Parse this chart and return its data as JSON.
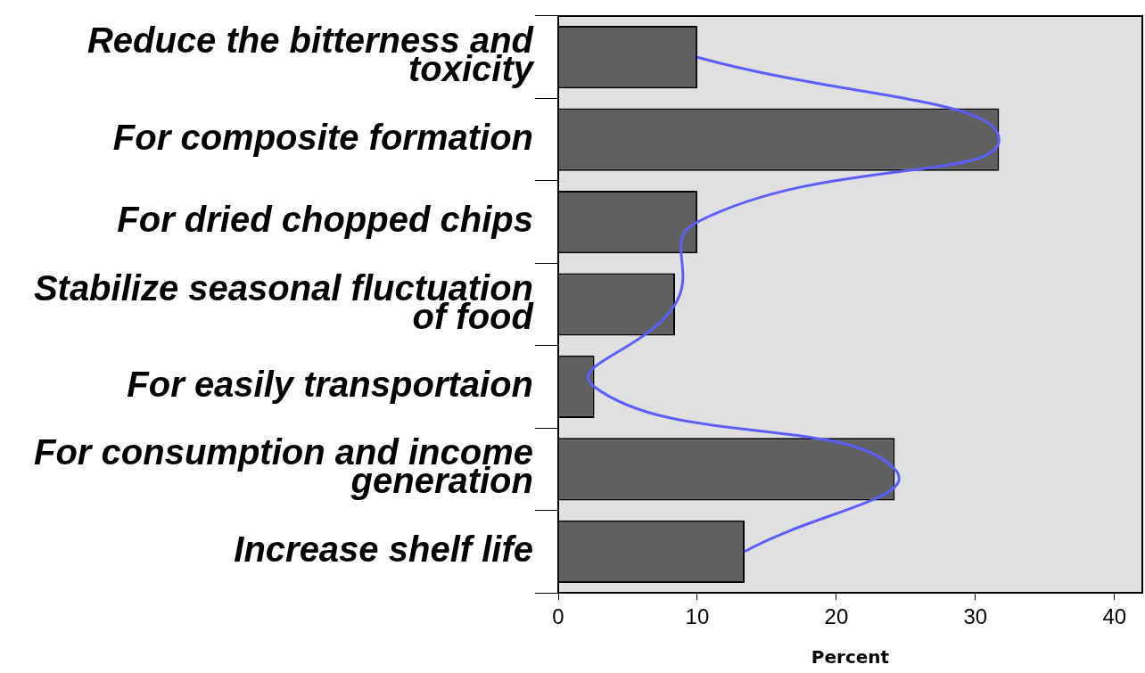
{
  "chart_data": {
    "type": "bar",
    "orientation": "horizontal",
    "xlabel": "Percent",
    "categories": [
      "Reduce the bitterness and toxicity",
      "For composite formation",
      "For dried chopped chips",
      "Stabilize seasonal fluctuation of food",
      "For easily transportaion",
      "For consumption and income generation",
      "Increase shelf life"
    ],
    "series": [
      {
        "color": "#606060",
        "values": [
          10.0,
          31.7,
          10.0,
          8.4,
          2.6,
          24.2,
          13.4
        ]
      },
      {
        "type": "line",
        "color": "#5c5cff",
        "values": [
          10.0,
          31.7,
          10.0,
          8.4,
          2.6,
          24.2,
          13.4
        ]
      }
    ],
    "xlim": [
      0,
      42
    ],
    "xticks": [
      0,
      10,
      20,
      30,
      40
    ],
    "grid": false,
    "legend": false,
    "marker": "none"
  }
}
